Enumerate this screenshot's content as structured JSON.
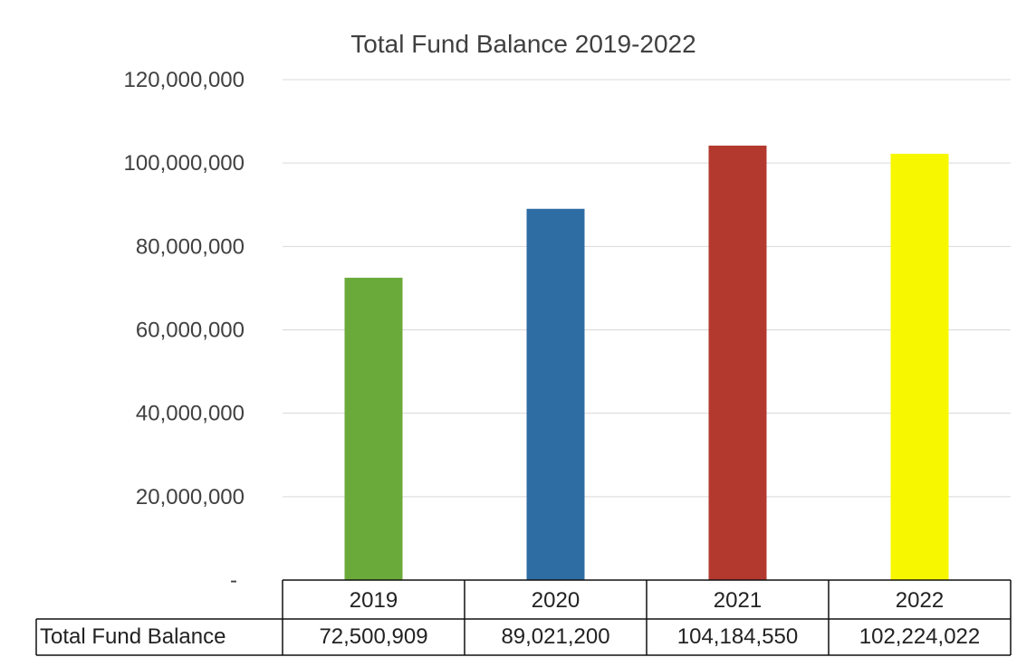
{
  "chart_data": {
    "type": "bar",
    "title": "Total Fund Balance 2019-2022",
    "categories": [
      "2019",
      "2020",
      "2021",
      "2022"
    ],
    "series": [
      {
        "name": "Total Fund Balance",
        "values": [
          72500909,
          89021200,
          104184550,
          102224022
        ],
        "value_labels": [
          "72,500,909",
          "89,021,200",
          "104,184,550",
          "102,224,022"
        ],
        "colors": [
          "#6aaa3a",
          "#2e6da4",
          "#b3392e",
          "#f7f700"
        ]
      }
    ],
    "ylim": [
      0,
      120000000
    ],
    "yticks": [
      0,
      20000000,
      40000000,
      60000000,
      80000000,
      100000000,
      120000000
    ],
    "ytick_labels": [
      "-",
      "20,000,000",
      "40,000,000",
      "60,000,000",
      "80,000,000",
      "100,000,000",
      "120,000,000"
    ],
    "grid": true,
    "legend": "none",
    "data_table": true
  }
}
